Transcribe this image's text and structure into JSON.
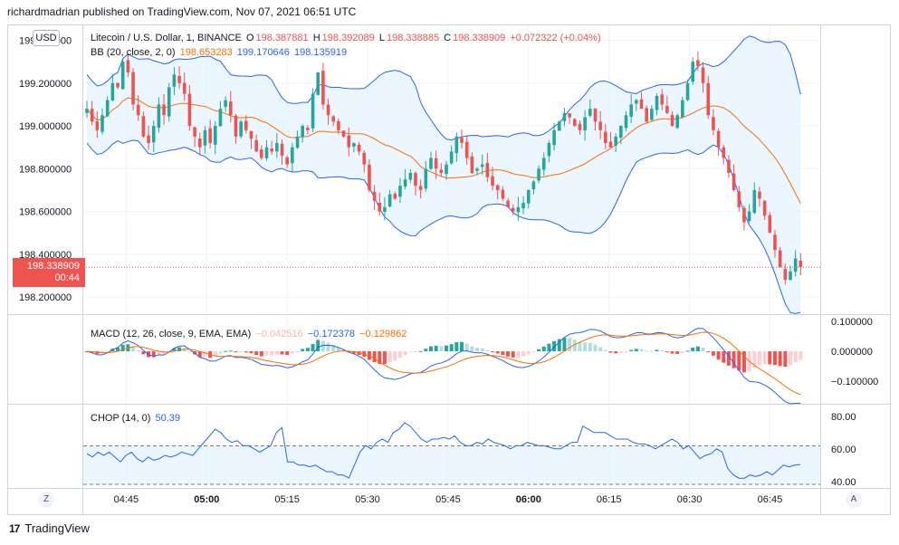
{
  "header": {
    "publisher": "richardmadrian published on TradingView.com, Nov 07, 2021 06:51 UTC"
  },
  "currency_button": "USD",
  "legend_main": {
    "symbol": "Litecoin / U.S. Dollar, 1, BINANCE",
    "o_label": "O",
    "o_value": "198.387881",
    "h_label": "H",
    "h_value": "198.392089",
    "l_label": "L",
    "l_value": "198.338885",
    "c_label": "C",
    "c_value": "198.338909",
    "change": "+0.072322 (+0.04%)"
  },
  "legend_bb": {
    "label": "BB (20, close, 2, 0)",
    "basis": "198.653283",
    "upper": "199.170646",
    "lower": "198.135919"
  },
  "legend_macd": {
    "label": "MACD (12, 26, close, 9, EMA, EMA)",
    "hist": "−0.042516",
    "macd": "−0.172378",
    "signal": "−0.129862"
  },
  "legend_chop": {
    "label": "CHOP (14, 0)",
    "value": "50.39"
  },
  "price_tag": {
    "price": "198.338909",
    "countdown": "00:44"
  },
  "corner_left": "Z",
  "corner_right": "A",
  "footer": {
    "brand": "TradingView",
    "logo_glyph": "17"
  },
  "colors": {
    "up": "#26a69a",
    "down": "#ef5350",
    "bb_band": "#2962ff",
    "bb_basis": "#ff6d00",
    "bb_fill": "#e3f2fd",
    "macd_line": "#2962ff",
    "signal_line": "#ff6d00",
    "hist_up_strong": "#26a69a",
    "hist_up_weak": "#b2dfdb",
    "hist_down_strong": "#ef5350",
    "hist_down_weak": "#ffcdd2",
    "grid": "#f0f3fa",
    "axis_text": "#131722"
  },
  "chart_data": [
    {
      "type": "candlestick",
      "title": "Litecoin / U.S. Dollar, 1, BINANCE",
      "ylim": [
        198.12,
        199.47
      ],
      "y_ticks": [
        "198.200000",
        "198.400000",
        "198.600000",
        "198.800000",
        "199.000000",
        "199.200000",
        "199.400000"
      ],
      "x_ticks": [
        "04:45",
        "05:00",
        "05:15",
        "05:30",
        "05:45",
        "06:00",
        "06:15",
        "06:30",
        "06:45"
      ],
      "x_ticks_bold": [
        "05:00",
        "06:00"
      ],
      "time_range": [
        "04:37",
        "06:51"
      ],
      "closes_approx": [
        199.08,
        199.02,
        198.98,
        199.05,
        199.12,
        199.2,
        199.18,
        199.3,
        199.25,
        199.1,
        199.05,
        198.95,
        198.92,
        199.0,
        199.1,
        199.05,
        199.18,
        199.24,
        199.2,
        199.15,
        199.0,
        198.95,
        198.9,
        198.98,
        198.92,
        199.0,
        199.08,
        199.12,
        199.05,
        198.95,
        199.02,
        198.98,
        198.94,
        198.88,
        198.85,
        198.9,
        198.88,
        198.92,
        198.86,
        198.82,
        198.9,
        198.95,
        199.0,
        198.98,
        199.15,
        199.25,
        199.1,
        199.05,
        199.02,
        198.98,
        198.95,
        198.9,
        198.92,
        198.88,
        198.82,
        198.7,
        198.65,
        198.6,
        198.62,
        198.68,
        198.66,
        198.72,
        198.75,
        198.78,
        198.72,
        198.7,
        198.8,
        198.85,
        198.8,
        198.78,
        198.82,
        198.88,
        198.95,
        198.92,
        198.85,
        198.78,
        198.8,
        198.82,
        198.76,
        198.72,
        198.7,
        198.66,
        198.62,
        198.6,
        198.62,
        198.64,
        198.7,
        198.74,
        198.8,
        198.85,
        198.92,
        198.98,
        199.02,
        199.06,
        199.04,
        199.0,
        198.98,
        199.04,
        199.08,
        199.02,
        198.98,
        198.92,
        198.9,
        198.95,
        199.0,
        199.05,
        199.1,
        199.12,
        199.08,
        199.02,
        199.08,
        199.14,
        199.1,
        199.06,
        199.0,
        199.05,
        199.12,
        199.2,
        199.3,
        199.28,
        199.2,
        199.05,
        198.98,
        198.9,
        198.85,
        198.78,
        198.7,
        198.62,
        198.55,
        198.6,
        198.7,
        198.66,
        198.58,
        198.5,
        198.42,
        198.34,
        198.28,
        198.32,
        198.38,
        198.34
      ]
    },
    {
      "type": "line",
      "title": "MACD (12, 26, close, 9, EMA, EMA)",
      "ylim": [
        -0.175,
        0.115
      ],
      "y_ticks": [
        "−0.100000",
        "0.000000",
        "0.100000"
      ]
    },
    {
      "type": "line",
      "title": "CHOP (14, 0)",
      "ylim": [
        36,
        86
      ],
      "y_ticks": [
        "40.00",
        "60.00",
        "80.00"
      ],
      "bands": [
        38.2,
        61.8
      ],
      "values_approx": [
        57,
        55,
        58,
        56,
        58,
        55,
        52,
        56,
        58,
        54,
        52,
        55,
        53,
        54,
        56,
        55,
        56,
        58,
        57,
        56,
        60,
        64,
        68,
        72,
        70,
        66,
        64,
        65,
        62,
        62,
        60,
        58,
        60,
        62,
        70,
        73,
        52,
        52,
        50,
        50,
        49,
        50,
        48,
        46,
        46,
        44,
        44,
        42,
        50,
        58,
        62,
        60,
        64,
        66,
        64,
        70,
        72,
        76,
        74,
        70,
        66,
        64,
        66,
        66,
        67,
        66,
        68,
        64,
        62,
        62,
        64,
        63,
        66,
        64,
        63,
        62,
        60,
        62,
        62,
        64,
        63,
        62,
        62,
        61,
        60,
        60,
        62,
        64,
        64,
        74,
        72,
        70,
        70,
        70,
        68,
        66,
        66,
        66,
        64,
        63,
        63,
        62,
        60,
        62,
        64,
        66,
        64,
        60,
        62,
        58,
        54,
        56,
        57,
        60,
        58,
        48,
        44,
        42,
        42,
        44,
        43,
        44,
        46,
        44,
        47,
        50,
        49,
        50,
        50.39
      ]
    }
  ]
}
